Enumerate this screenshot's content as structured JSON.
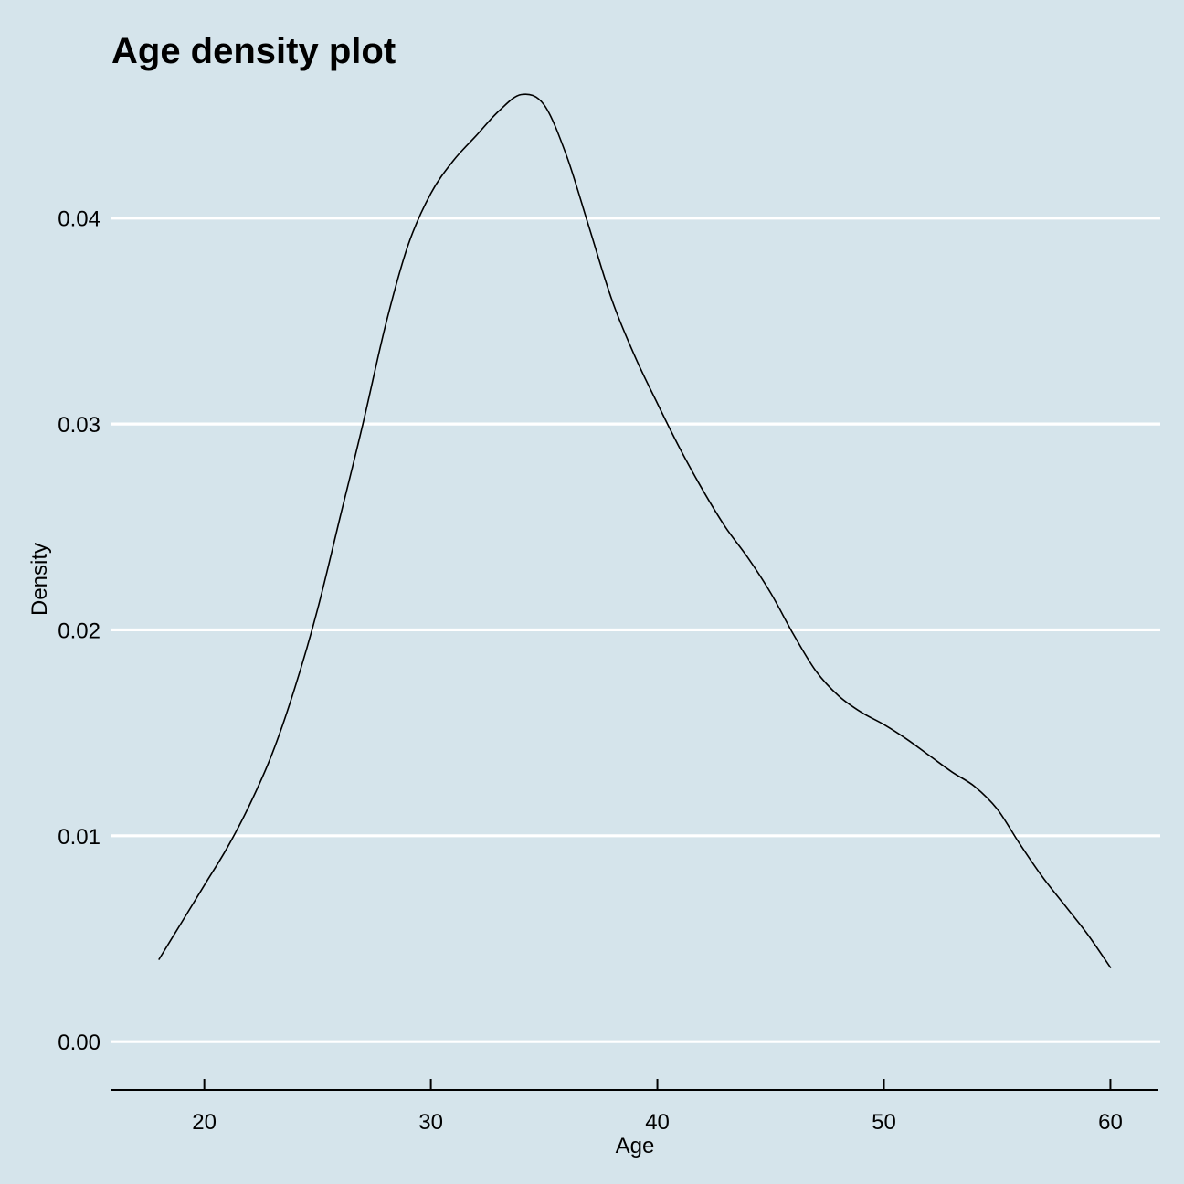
{
  "chart_data": {
    "type": "line",
    "title": "Age density plot",
    "xlabel": "Age",
    "ylabel": "Density",
    "xlim": [
      15.9,
      62.2
    ],
    "ylim": [
      -0.0023,
      0.0466
    ],
    "x_ticks": [
      20,
      30,
      40,
      50,
      60
    ],
    "x_tick_labels": [
      "20",
      "30",
      "40",
      "50",
      "60"
    ],
    "y_ticks": [
      0,
      0.01,
      0.02,
      0.03,
      0.04
    ],
    "y_tick_labels": [
      "0.00",
      "0.01",
      "0.02",
      "0.03",
      "0.04"
    ],
    "grid": {
      "horizontal": true,
      "vertical": false,
      "color": "#ffffff"
    },
    "background_color": "#d5e4eb",
    "line_color": "#000000",
    "legend": "none",
    "series": [
      {
        "x": [
          18,
          19,
          20,
          21,
          22,
          23,
          24,
          25,
          26,
          27,
          28,
          29,
          30,
          31,
          32,
          33,
          34,
          35,
          36,
          37,
          38,
          39,
          40,
          41,
          42,
          43,
          44,
          45,
          46,
          47,
          48,
          49,
          50,
          51,
          52,
          53,
          54,
          55,
          56,
          57,
          58,
          59,
          60
        ],
        "y": [
          0.004,
          0.0058,
          0.0076,
          0.0094,
          0.0115,
          0.014,
          0.0172,
          0.021,
          0.0255,
          0.03,
          0.0348,
          0.0387,
          0.0412,
          0.0428,
          0.044,
          0.0452,
          0.046,
          0.0455,
          0.043,
          0.0395,
          0.036,
          0.0333,
          0.031,
          0.0288,
          0.0268,
          0.025,
          0.0235,
          0.0218,
          0.0198,
          0.018,
          0.0168,
          0.016,
          0.0154,
          0.0147,
          0.0139,
          0.0131,
          0.0124,
          0.0113,
          0.0096,
          0.008,
          0.0066,
          0.0052,
          0.0036
        ]
      }
    ]
  }
}
